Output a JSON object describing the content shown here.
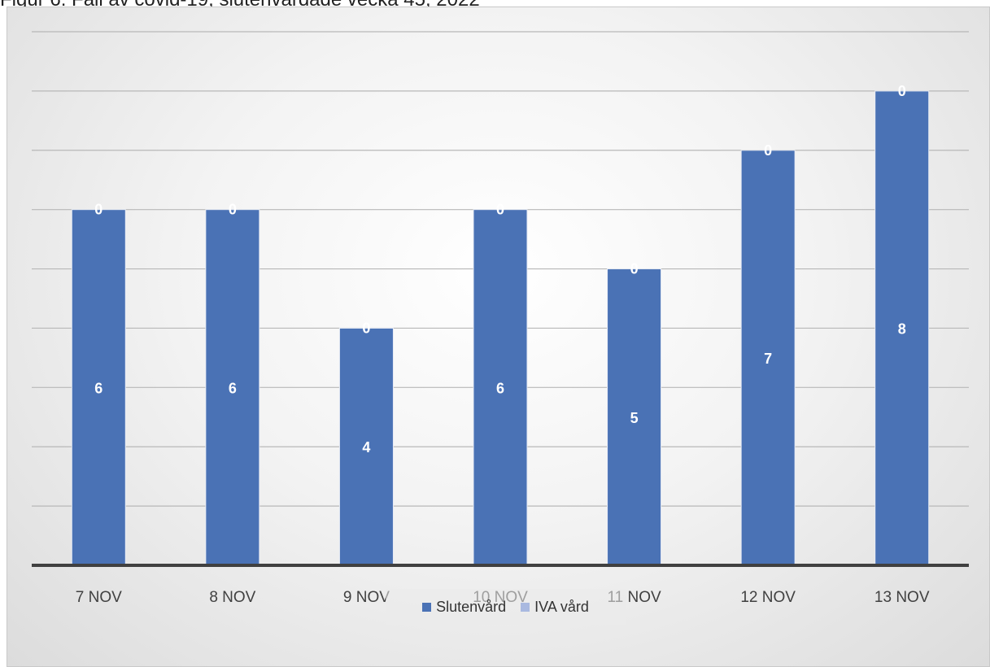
{
  "caption": "Figur 6. Fall av covid-19, slutenvårdade vecka 45, 2022",
  "chart_data": {
    "type": "bar",
    "stacked": true,
    "categories": [
      "7 NOV",
      "8 NOV",
      "9 NOV",
      "10 NOV",
      "11 NOV",
      "12 NOV",
      "13 NOV"
    ],
    "series": [
      {
        "name": "Slutenvård",
        "values": [
          6,
          6,
          4,
          6,
          5,
          7,
          8
        ],
        "color": "#4a72b5"
      },
      {
        "name": "IVA vård",
        "values": [
          0,
          0,
          0,
          0,
          0,
          0,
          0
        ],
        "color": "#a9b9e0"
      }
    ],
    "ylim": [
      0,
      9
    ],
    "grid": true,
    "legend": "bottom",
    "data_labels": true
  }
}
